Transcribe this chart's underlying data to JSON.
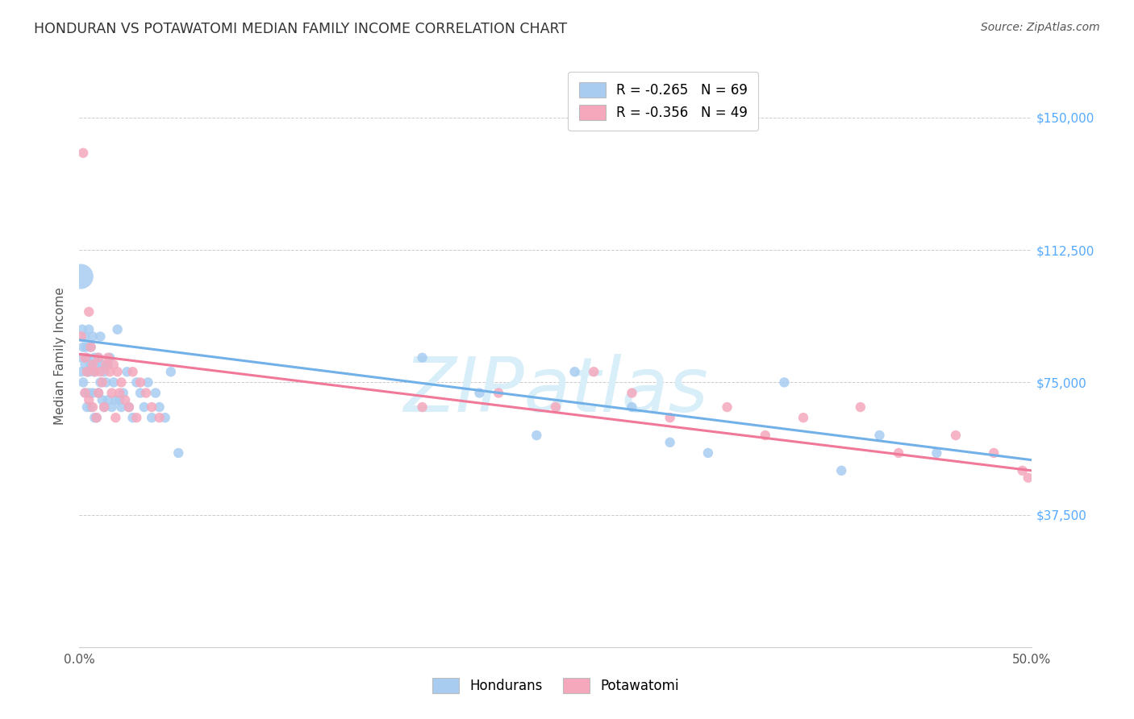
{
  "title": "HONDURAN VS POTAWATOMI MEDIAN FAMILY INCOME CORRELATION CHART",
  "source": "Source: ZipAtlas.com",
  "ylabel": "Median Family Income",
  "xlim": [
    0.0,
    0.5
  ],
  "ylim": [
    0,
    165000
  ],
  "legend_entry1": "R = -0.265   N = 69",
  "legend_entry2": "R = -0.356   N = 49",
  "legend_label1": "Hondurans",
  "legend_label2": "Potawatomi",
  "blue_color": "#A8CCF0",
  "pink_color": "#F5A8BC",
  "line_blue": "#72B0E8",
  "line_pink": "#F07898",
  "watermark_text": "ZIPatlas",
  "watermark_color": "#D8EEF8",
  "background_color": "#ffffff",
  "ytick_vals": [
    37500,
    75000,
    112500,
    150000
  ],
  "ytick_labels": [
    "$37,500",
    "$75,000",
    "$112,500",
    "$150,000"
  ],
  "blue_line_y0": 87000,
  "blue_line_y1": 53000,
  "pink_line_y0": 83000,
  "pink_line_y1": 50000,
  "hondurans_x": [
    0.0008,
    0.001,
    0.001,
    0.0015,
    0.002,
    0.002,
    0.003,
    0.003,
    0.003,
    0.0035,
    0.004,
    0.004,
    0.004,
    0.005,
    0.005,
    0.005,
    0.006,
    0.006,
    0.006,
    0.007,
    0.007,
    0.008,
    0.008,
    0.008,
    0.009,
    0.009,
    0.01,
    0.01,
    0.011,
    0.011,
    0.012,
    0.012,
    0.013,
    0.013,
    0.014,
    0.015,
    0.015,
    0.016,
    0.017,
    0.018,
    0.019,
    0.02,
    0.021,
    0.022,
    0.023,
    0.025,
    0.026,
    0.028,
    0.03,
    0.032,
    0.034,
    0.036,
    0.038,
    0.04,
    0.042,
    0.045,
    0.048,
    0.052,
    0.18,
    0.21,
    0.24,
    0.26,
    0.29,
    0.31,
    0.33,
    0.37,
    0.4,
    0.42,
    0.45
  ],
  "hondurans_y": [
    105000,
    82000,
    78000,
    90000,
    85000,
    75000,
    88000,
    80000,
    72000,
    85000,
    82000,
    78000,
    68000,
    90000,
    78000,
    72000,
    85000,
    80000,
    68000,
    88000,
    72000,
    82000,
    78000,
    65000,
    80000,
    65000,
    82000,
    72000,
    88000,
    75000,
    80000,
    70000,
    78000,
    68000,
    75000,
    80000,
    70000,
    82000,
    68000,
    75000,
    70000,
    90000,
    70000,
    68000,
    72000,
    78000,
    68000,
    65000,
    75000,
    72000,
    68000,
    75000,
    65000,
    72000,
    68000,
    65000,
    78000,
    55000,
    82000,
    72000,
    60000,
    78000,
    68000,
    58000,
    55000,
    75000,
    50000,
    60000,
    55000
  ],
  "hondurans_size": [
    500,
    80,
    80,
    80,
    80,
    80,
    80,
    80,
    80,
    80,
    80,
    80,
    80,
    80,
    80,
    80,
    80,
    80,
    80,
    80,
    80,
    80,
    80,
    80,
    80,
    80,
    80,
    80,
    80,
    80,
    80,
    80,
    80,
    80,
    80,
    80,
    80,
    80,
    80,
    80,
    80,
    80,
    80,
    80,
    80,
    80,
    80,
    80,
    80,
    80,
    80,
    80,
    80,
    80,
    80,
    80,
    80,
    80,
    80,
    80,
    80,
    80,
    80,
    80,
    80,
    80,
    80,
    80,
    80
  ],
  "potawatomi_x": [
    0.001,
    0.002,
    0.003,
    0.003,
    0.004,
    0.005,
    0.005,
    0.006,
    0.007,
    0.007,
    0.008,
    0.009,
    0.01,
    0.01,
    0.011,
    0.012,
    0.013,
    0.014,
    0.015,
    0.016,
    0.017,
    0.018,
    0.019,
    0.02,
    0.021,
    0.022,
    0.024,
    0.026,
    0.028,
    0.03,
    0.032,
    0.035,
    0.038,
    0.042,
    0.18,
    0.22,
    0.25,
    0.27,
    0.29,
    0.31,
    0.34,
    0.36,
    0.38,
    0.41,
    0.43,
    0.46,
    0.48,
    0.495,
    0.498
  ],
  "potawatomi_y": [
    88000,
    140000,
    82000,
    72000,
    78000,
    95000,
    70000,
    85000,
    80000,
    68000,
    78000,
    65000,
    82000,
    72000,
    78000,
    75000,
    68000,
    80000,
    82000,
    78000,
    72000,
    80000,
    65000,
    78000,
    72000,
    75000,
    70000,
    68000,
    78000,
    65000,
    75000,
    72000,
    68000,
    65000,
    68000,
    72000,
    68000,
    78000,
    72000,
    65000,
    68000,
    60000,
    65000,
    68000,
    55000,
    60000,
    55000,
    50000,
    48000
  ],
  "potawatomi_size": [
    80,
    80,
    80,
    80,
    80,
    80,
    80,
    80,
    80,
    80,
    80,
    80,
    80,
    80,
    80,
    80,
    80,
    80,
    80,
    80,
    80,
    80,
    80,
    80,
    80,
    80,
    80,
    80,
    80,
    80,
    80,
    80,
    80,
    80,
    80,
    80,
    80,
    80,
    80,
    80,
    80,
    80,
    80,
    80,
    80,
    80,
    80,
    80,
    80
  ]
}
